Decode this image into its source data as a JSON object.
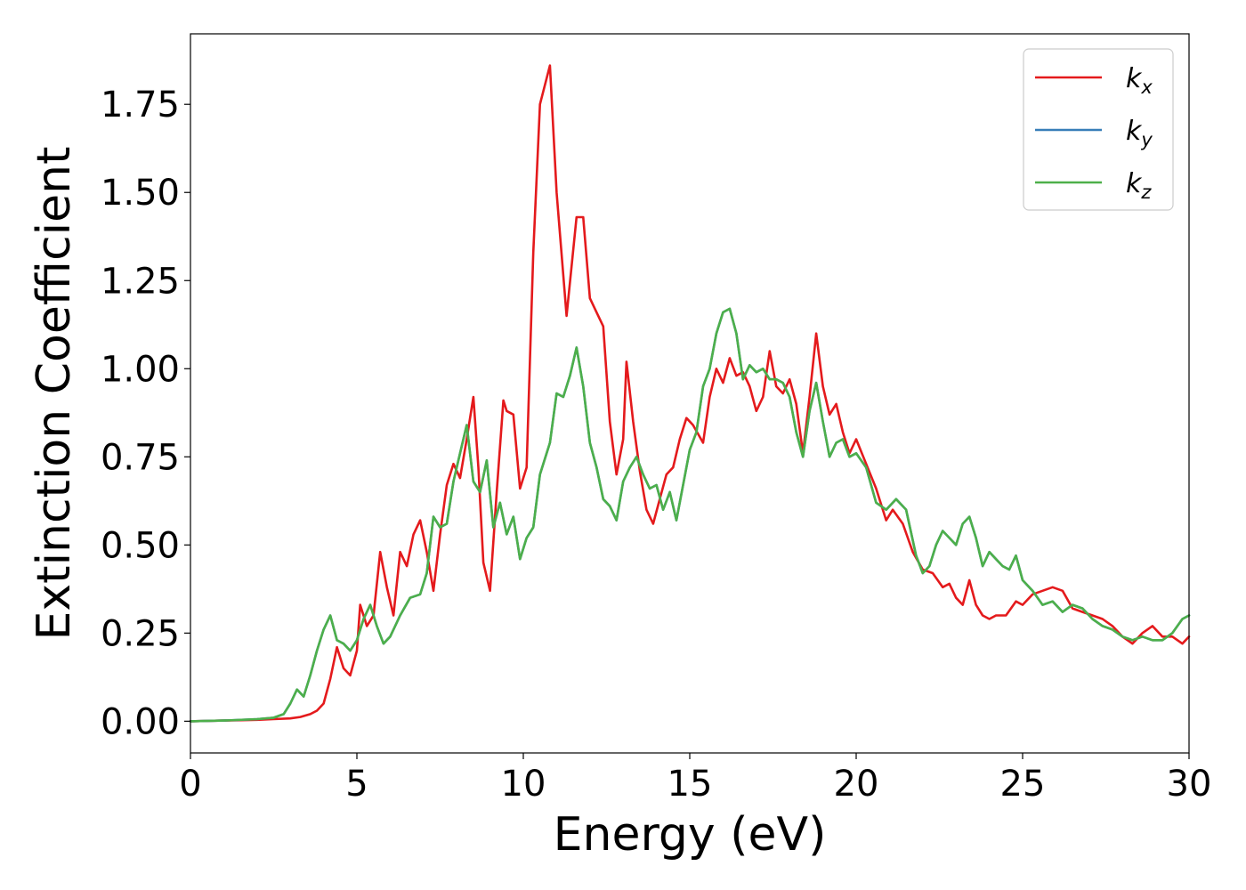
{
  "chart_data": {
    "type": "line",
    "title": "",
    "xlabel": "Energy (eV)",
    "ylabel": "Extinction Coefficient",
    "xlim": [
      0,
      30
    ],
    "ylim": [
      -0.09,
      1.95
    ],
    "xticks": [
      0,
      5,
      10,
      15,
      20,
      25,
      30
    ],
    "yticks": [
      0.0,
      0.25,
      0.5,
      0.75,
      1.0,
      1.25,
      1.5,
      1.75
    ],
    "xtick_labels": [
      "0",
      "5",
      "10",
      "15",
      "20",
      "25",
      "30"
    ],
    "ytick_labels": [
      "0.00",
      "0.25",
      "0.50",
      "0.75",
      "1.00",
      "1.25",
      "1.50",
      "1.75"
    ],
    "grid": false,
    "legend_position": "top-right",
    "series": [
      {
        "name": "kx",
        "label_base": "k",
        "label_sub": "x",
        "color": "#e41a1c",
        "x": [
          0,
          1,
          2,
          2.5,
          3,
          3.3,
          3.6,
          3.8,
          4.0,
          4.2,
          4.4,
          4.6,
          4.8,
          5.0,
          5.1,
          5.3,
          5.5,
          5.7,
          5.9,
          6.1,
          6.3,
          6.5,
          6.7,
          6.9,
          7.1,
          7.3,
          7.5,
          7.7,
          7.9,
          8.1,
          8.3,
          8.5,
          8.65,
          8.8,
          9.0,
          9.2,
          9.4,
          9.5,
          9.7,
          9.9,
          10.1,
          10.3,
          10.5,
          10.8,
          11.0,
          11.3,
          11.6,
          11.8,
          12.0,
          12.2,
          12.4,
          12.6,
          12.8,
          13.0,
          13.1,
          13.3,
          13.5,
          13.7,
          13.9,
          14.1,
          14.3,
          14.5,
          14.7,
          14.9,
          15.1,
          15.4,
          15.6,
          15.8,
          16.0,
          16.2,
          16.4,
          16.6,
          16.8,
          17.0,
          17.2,
          17.4,
          17.6,
          17.8,
          18.0,
          18.2,
          18.4,
          18.6,
          18.8,
          19.0,
          19.2,
          19.4,
          19.6,
          19.8,
          20.0,
          20.3,
          20.6,
          20.9,
          21.1,
          21.4,
          21.7,
          22.0,
          22.3,
          22.6,
          22.8,
          23.0,
          23.2,
          23.4,
          23.6,
          23.8,
          24.0,
          24.2,
          24.5,
          24.8,
          25.0,
          25.3,
          25.6,
          25.9,
          26.2,
          26.5,
          26.8,
          27.1,
          27.4,
          27.7,
          28.0,
          28.3,
          28.6,
          28.9,
          29.2,
          29.5,
          29.8,
          30.0
        ],
        "y": [
          0.0,
          0.002,
          0.004,
          0.006,
          0.008,
          0.012,
          0.02,
          0.03,
          0.05,
          0.12,
          0.21,
          0.15,
          0.13,
          0.2,
          0.33,
          0.27,
          0.3,
          0.48,
          0.38,
          0.3,
          0.48,
          0.44,
          0.53,
          0.57,
          0.48,
          0.37,
          0.53,
          0.67,
          0.73,
          0.69,
          0.8,
          0.92,
          0.72,
          0.45,
          0.37,
          0.65,
          0.91,
          0.88,
          0.87,
          0.66,
          0.72,
          1.33,
          1.75,
          1.86,
          1.5,
          1.15,
          1.43,
          1.43,
          1.2,
          1.16,
          1.12,
          0.85,
          0.7,
          0.8,
          1.02,
          0.85,
          0.71,
          0.6,
          0.56,
          0.63,
          0.7,
          0.72,
          0.8,
          0.86,
          0.84,
          0.79,
          0.92,
          1.0,
          0.96,
          1.03,
          0.98,
          0.99,
          0.95,
          0.88,
          0.92,
          1.05,
          0.95,
          0.93,
          0.97,
          0.9,
          0.76,
          0.92,
          1.1,
          0.95,
          0.87,
          0.9,
          0.82,
          0.76,
          0.8,
          0.73,
          0.66,
          0.57,
          0.6,
          0.56,
          0.48,
          0.43,
          0.42,
          0.38,
          0.39,
          0.35,
          0.33,
          0.4,
          0.33,
          0.3,
          0.29,
          0.3,
          0.3,
          0.34,
          0.33,
          0.36,
          0.37,
          0.38,
          0.37,
          0.32,
          0.31,
          0.3,
          0.29,
          0.27,
          0.24,
          0.22,
          0.25,
          0.27,
          0.24,
          0.24,
          0.22,
          0.24
        ]
      },
      {
        "name": "ky",
        "label_base": "k",
        "label_sub": "y",
        "color": "#377eb8",
        "x": [
          0,
          1,
          2,
          2.5,
          2.8,
          3.0,
          3.2,
          3.4,
          3.6,
          3.8,
          4.0,
          4.2,
          4.4,
          4.6,
          4.8,
          5.0,
          5.2,
          5.4,
          5.6,
          5.8,
          6.0,
          6.3,
          6.6,
          6.9,
          7.1,
          7.3,
          7.5,
          7.7,
          7.9,
          8.1,
          8.3,
          8.5,
          8.7,
          8.9,
          9.1,
          9.3,
          9.5,
          9.7,
          9.9,
          10.1,
          10.3,
          10.5,
          10.8,
          11.0,
          11.2,
          11.4,
          11.6,
          11.8,
          12.0,
          12.2,
          12.4,
          12.6,
          12.8,
          13.0,
          13.2,
          13.4,
          13.6,
          13.8,
          14.0,
          14.2,
          14.4,
          14.6,
          14.8,
          15.0,
          15.2,
          15.4,
          15.6,
          15.8,
          16.0,
          16.2,
          16.4,
          16.6,
          16.8,
          17.0,
          17.2,
          17.4,
          17.6,
          17.8,
          18.0,
          18.2,
          18.4,
          18.6,
          18.8,
          19.0,
          19.2,
          19.4,
          19.6,
          19.8,
          20.0,
          20.3,
          20.6,
          20.9,
          21.2,
          21.5,
          21.8,
          22.0,
          22.2,
          22.4,
          22.6,
          22.8,
          23.0,
          23.2,
          23.4,
          23.6,
          23.8,
          24.0,
          24.2,
          24.4,
          24.6,
          24.8,
          25.0,
          25.3,
          25.6,
          25.9,
          26.2,
          26.5,
          26.8,
          27.1,
          27.4,
          27.7,
          28.0,
          28.3,
          28.6,
          28.9,
          29.2,
          29.5,
          29.8,
          30.0
        ],
        "y": [
          0.0,
          0.002,
          0.006,
          0.01,
          0.02,
          0.05,
          0.09,
          0.07,
          0.13,
          0.2,
          0.26,
          0.3,
          0.23,
          0.22,
          0.2,
          0.23,
          0.29,
          0.33,
          0.27,
          0.22,
          0.24,
          0.3,
          0.35,
          0.36,
          0.42,
          0.58,
          0.55,
          0.56,
          0.68,
          0.76,
          0.84,
          0.68,
          0.65,
          0.74,
          0.55,
          0.62,
          0.53,
          0.58,
          0.46,
          0.52,
          0.55,
          0.7,
          0.79,
          0.93,
          0.92,
          0.98,
          1.06,
          0.95,
          0.79,
          0.72,
          0.63,
          0.61,
          0.57,
          0.68,
          0.72,
          0.75,
          0.7,
          0.66,
          0.67,
          0.6,
          0.65,
          0.57,
          0.67,
          0.77,
          0.82,
          0.95,
          1.0,
          1.1,
          1.16,
          1.17,
          1.1,
          0.97,
          1.01,
          0.99,
          1.0,
          0.97,
          0.97,
          0.96,
          0.92,
          0.82,
          0.75,
          0.88,
          0.96,
          0.85,
          0.75,
          0.79,
          0.8,
          0.75,
          0.76,
          0.72,
          0.62,
          0.6,
          0.63,
          0.6,
          0.47,
          0.42,
          0.44,
          0.5,
          0.54,
          0.52,
          0.5,
          0.56,
          0.58,
          0.52,
          0.44,
          0.48,
          0.46,
          0.44,
          0.43,
          0.47,
          0.4,
          0.37,
          0.33,
          0.34,
          0.31,
          0.33,
          0.32,
          0.29,
          0.27,
          0.26,
          0.24,
          0.23,
          0.24,
          0.23,
          0.23,
          0.25,
          0.29,
          0.3
        ]
      },
      {
        "name": "kz",
        "label_base": "k",
        "label_sub": "z",
        "color": "#4daf4a",
        "x": [
          0,
          1,
          2,
          2.5,
          2.8,
          3.0,
          3.2,
          3.4,
          3.6,
          3.8,
          4.0,
          4.2,
          4.4,
          4.6,
          4.8,
          5.0,
          5.2,
          5.4,
          5.6,
          5.8,
          6.0,
          6.3,
          6.6,
          6.9,
          7.1,
          7.3,
          7.5,
          7.7,
          7.9,
          8.1,
          8.3,
          8.5,
          8.7,
          8.9,
          9.1,
          9.3,
          9.5,
          9.7,
          9.9,
          10.1,
          10.3,
          10.5,
          10.8,
          11.0,
          11.2,
          11.4,
          11.6,
          11.8,
          12.0,
          12.2,
          12.4,
          12.6,
          12.8,
          13.0,
          13.2,
          13.4,
          13.6,
          13.8,
          14.0,
          14.2,
          14.4,
          14.6,
          14.8,
          15.0,
          15.2,
          15.4,
          15.6,
          15.8,
          16.0,
          16.2,
          16.4,
          16.6,
          16.8,
          17.0,
          17.2,
          17.4,
          17.6,
          17.8,
          18.0,
          18.2,
          18.4,
          18.6,
          18.8,
          19.0,
          19.2,
          19.4,
          19.6,
          19.8,
          20.0,
          20.3,
          20.6,
          20.9,
          21.2,
          21.5,
          21.8,
          22.0,
          22.2,
          22.4,
          22.6,
          22.8,
          23.0,
          23.2,
          23.4,
          23.6,
          23.8,
          24.0,
          24.2,
          24.4,
          24.6,
          24.8,
          25.0,
          25.3,
          25.6,
          25.9,
          26.2,
          26.5,
          26.8,
          27.1,
          27.4,
          27.7,
          28.0,
          28.3,
          28.6,
          28.9,
          29.2,
          29.5,
          29.8,
          30.0
        ],
        "y": [
          0.0,
          0.002,
          0.006,
          0.01,
          0.02,
          0.05,
          0.09,
          0.07,
          0.13,
          0.2,
          0.26,
          0.3,
          0.23,
          0.22,
          0.2,
          0.23,
          0.29,
          0.33,
          0.27,
          0.22,
          0.24,
          0.3,
          0.35,
          0.36,
          0.42,
          0.58,
          0.55,
          0.56,
          0.68,
          0.76,
          0.84,
          0.68,
          0.65,
          0.74,
          0.55,
          0.62,
          0.53,
          0.58,
          0.46,
          0.52,
          0.55,
          0.7,
          0.79,
          0.93,
          0.92,
          0.98,
          1.06,
          0.95,
          0.79,
          0.72,
          0.63,
          0.61,
          0.57,
          0.68,
          0.72,
          0.75,
          0.7,
          0.66,
          0.67,
          0.6,
          0.65,
          0.57,
          0.67,
          0.77,
          0.82,
          0.95,
          1.0,
          1.1,
          1.16,
          1.17,
          1.1,
          0.97,
          1.01,
          0.99,
          1.0,
          0.97,
          0.97,
          0.96,
          0.92,
          0.82,
          0.75,
          0.88,
          0.96,
          0.85,
          0.75,
          0.79,
          0.8,
          0.75,
          0.76,
          0.72,
          0.62,
          0.6,
          0.63,
          0.6,
          0.47,
          0.42,
          0.44,
          0.5,
          0.54,
          0.52,
          0.5,
          0.56,
          0.58,
          0.52,
          0.44,
          0.48,
          0.46,
          0.44,
          0.43,
          0.47,
          0.4,
          0.37,
          0.33,
          0.34,
          0.31,
          0.33,
          0.32,
          0.29,
          0.27,
          0.26,
          0.24,
          0.23,
          0.24,
          0.23,
          0.23,
          0.25,
          0.29,
          0.3
        ]
      }
    ]
  }
}
